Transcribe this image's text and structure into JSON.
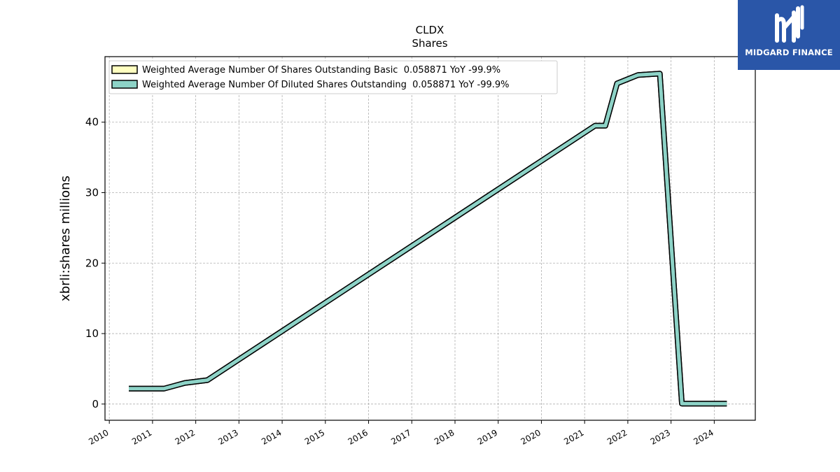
{
  "brand": {
    "name": "MIDGARD FINANCE",
    "bg_color": "#2a56a8",
    "icon": "midgard-logo-icon"
  },
  "chart_data": {
    "type": "line",
    "title": "CLDX",
    "subtitle": "Shares",
    "ylabel": "xbrli:shares millions",
    "xlabel": "",
    "xlim": [
      2009.9,
      2024.95
    ],
    "ylim": [
      -2.3,
      49.3
    ],
    "yticks": [
      0,
      10,
      20,
      30,
      40
    ],
    "xticks": [
      "2010",
      "2011",
      "2012",
      "2013",
      "2014",
      "2015",
      "2016",
      "2017",
      "2018",
      "2019",
      "2020",
      "2021",
      "2022",
      "2023",
      "2024"
    ],
    "grid": true,
    "legend_position": "top-left",
    "series": [
      {
        "name": "Weighted Average Number Of Shares Outstanding Basic  0.058871 YoY -99.9%",
        "color": "#ffffc0",
        "x": [
          2010.45,
          2011.27,
          2011.75,
          2012.27,
          2021.24,
          2021.48,
          2021.75,
          2022.24,
          2022.74,
          2023.25,
          2024.29
        ],
        "y": [
          2.2,
          2.2,
          3.0,
          3.4,
          39.5,
          39.5,
          45.5,
          46.7,
          46.9,
          0.06,
          0.06
        ]
      },
      {
        "name": "Weighted Average Number Of Diluted Shares Outstanding  0.058871 YoY -99.9%",
        "color": "#8dd3c7",
        "x": [
          2010.45,
          2011.27,
          2011.75,
          2012.27,
          2021.24,
          2021.48,
          2021.75,
          2022.24,
          2022.74,
          2023.25,
          2024.29
        ],
        "y": [
          2.2,
          2.2,
          3.0,
          3.4,
          39.5,
          39.5,
          45.5,
          46.7,
          46.9,
          0.06,
          0.06
        ]
      }
    ]
  }
}
